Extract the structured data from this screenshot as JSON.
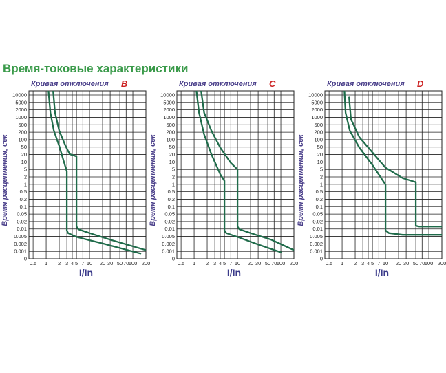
{
  "page_title": "Время-токовые характеристики",
  "colors": {
    "title": "#3a9a4a",
    "curve": "#1f6b4a",
    "letter": "#cc2222",
    "label": "#4a3f8a"
  },
  "chart_data": [
    {
      "type": "line",
      "title": "Кривая отключения",
      "letter": "B",
      "xlabel": "I/In",
      "ylabel": "Время расцепления, сек",
      "xscale": "log",
      "yscale": "log",
      "yticks": [
        "10000",
        "5000",
        "2000",
        "1000",
        "500",
        "200",
        "100",
        "50",
        "20",
        "10",
        "5",
        "2",
        "1",
        "0.5",
        "0.2",
        "0.1",
        "0.05",
        "0.02",
        "0.01",
        "0.005",
        "0.002",
        "0.001",
        "0"
      ],
      "xticks": [
        {
          "label": "0.5",
          "v": 0.5
        },
        {
          "label": "1",
          "v": 1
        },
        {
          "label": "2",
          "v": 2
        },
        {
          "label": "3",
          "v": 3
        },
        {
          "label": "4",
          "v": 4
        },
        {
          "label": "5",
          "v": 5
        },
        {
          "label": "7",
          "v": 7
        },
        {
          "label": "10",
          "v": 10
        },
        {
          "label": "20",
          "v": 20
        },
        {
          "label": "30",
          "v": 30
        },
        {
          "label": "50",
          "v": 50
        },
        {
          "label": "70",
          "v": 70
        },
        {
          "label": "100",
          "v": 100
        },
        {
          "label": "200",
          "v": 200
        }
      ],
      "series": [
        {
          "points": [
            [
              1.13,
              20000
            ],
            [
              1.25,
              2000
            ],
            [
              1.5,
              300
            ],
            [
              2.0,
              60
            ],
            [
              2.7,
              8
            ],
            [
              3.0,
              4
            ],
            [
              3.0,
              0.008
            ],
            [
              3.2,
              0.006
            ],
            [
              5,
              0.004
            ],
            [
              20,
              0.002
            ],
            [
              150,
              0.0007
            ]
          ]
        },
        {
          "points": [
            [
              1.45,
              20000
            ],
            [
              1.6,
              2000
            ],
            [
              2.0,
              300
            ],
            [
              2.8,
              60
            ],
            [
              3.5,
              25
            ],
            [
              5.0,
              20
            ],
            [
              5.0,
              0.012
            ],
            [
              5.5,
              0.009
            ],
            [
              10,
              0.006
            ],
            [
              30,
              0.003
            ],
            [
              200,
              0.001
            ]
          ]
        }
      ]
    },
    {
      "type": "line",
      "title": "Кривая отключения",
      "letter": "C",
      "xlabel": "I/In",
      "ylabel": "Время расцепления, сек",
      "xscale": "log",
      "yscale": "log",
      "yticks": [
        "10000",
        "5000",
        "2000",
        "1000",
        "500",
        "200",
        "100",
        "50",
        "20",
        "10",
        "5",
        "2",
        "1",
        "0.5",
        "0.2",
        "0.1",
        "0.05",
        "0.02",
        "0.01",
        "0.005",
        "0.002",
        "0.001",
        "0"
      ],
      "xticks": [
        {
          "label": "0.5",
          "v": 0.5
        },
        {
          "label": "1",
          "v": 1
        },
        {
          "label": "2",
          "v": 2
        },
        {
          "label": "3",
          "v": 3
        },
        {
          "label": "4",
          "v": 4
        },
        {
          "label": "5",
          "v": 5
        },
        {
          "label": "7",
          "v": 7
        },
        {
          "label": "10",
          "v": 10
        },
        {
          "label": "20",
          "v": 20
        },
        {
          "label": "30",
          "v": 30
        },
        {
          "label": "50",
          "v": 50
        },
        {
          "label": "70",
          "v": 70
        },
        {
          "label": "100",
          "v": 100
        },
        {
          "label": "200",
          "v": 200
        }
      ],
      "series": [
        {
          "points": [
            [
              1.13,
              20000
            ],
            [
              1.3,
              2000
            ],
            [
              1.7,
              200
            ],
            [
              2.5,
              25
            ],
            [
              4,
              3
            ],
            [
              5,
              1.5
            ],
            [
              5,
              0.008
            ],
            [
              5.5,
              0.006
            ],
            [
              10,
              0.004
            ],
            [
              30,
              0.0018
            ],
            [
              100,
              0.0008
            ]
          ]
        },
        {
          "points": [
            [
              1.45,
              20000
            ],
            [
              1.7,
              2000
            ],
            [
              2.5,
              300
            ],
            [
              4,
              50
            ],
            [
              7,
              10
            ],
            [
              10,
              5
            ],
            [
              10,
              0.012
            ],
            [
              11,
              0.009
            ],
            [
              20,
              0.006
            ],
            [
              60,
              0.003
            ],
            [
              200,
              0.001
            ]
          ]
        }
      ]
    },
    {
      "type": "line",
      "title": "Кривая отключения",
      "letter": "D",
      "xlabel": "I/In",
      "ylabel": "Время расцепления, сек",
      "xscale": "log",
      "yscale": "log",
      "yticks": [
        "10000",
        "5000",
        "2000",
        "1000",
        "500",
        "200",
        "100",
        "50",
        "20",
        "10",
        "5",
        "2",
        "1",
        "0.5",
        "0.2",
        "0.1",
        "0.05",
        "0.02",
        "0.01",
        "0.005",
        "0.002",
        "0.001",
        "0"
      ],
      "xticks": [
        {
          "label": "0.5",
          "v": 0.5
        },
        {
          "label": "1",
          "v": 1
        },
        {
          "label": "2",
          "v": 2
        },
        {
          "label": "3",
          "v": 3
        },
        {
          "label": "4",
          "v": 4
        },
        {
          "label": "5",
          "v": 5
        },
        {
          "label": "7",
          "v": 7
        },
        {
          "label": "10",
          "v": 10
        },
        {
          "label": "20",
          "v": 20
        },
        {
          "label": "30",
          "v": 30
        },
        {
          "label": "50",
          "v": 50
        },
        {
          "label": "70",
          "v": 70
        },
        {
          "label": "100",
          "v": 100
        },
        {
          "label": "200",
          "v": 200
        }
      ],
      "series": [
        {
          "points": [
            [
              1.13,
              20000
            ],
            [
              1.2,
              2000
            ],
            [
              1.5,
              300
            ],
            [
              2.5,
              50
            ],
            [
              5,
              8
            ],
            [
              10,
              1
            ],
            [
              10,
              0.008
            ],
            [
              12,
              0.006
            ],
            [
              25,
              0.005
            ],
            [
              200,
              0.005
            ]
          ]
        },
        {
          "points": [
            [
              1.45,
              10000
            ],
            [
              1.6,
              1000
            ],
            [
              2.5,
              150
            ],
            [
              5,
              30
            ],
            [
              10,
              6
            ],
            [
              25,
              2
            ],
            [
              50,
              1.3
            ],
            [
              50,
              0.013
            ],
            [
              60,
              0.012
            ],
            [
              100,
              0.012
            ],
            [
              200,
              0.012
            ]
          ]
        }
      ]
    }
  ]
}
